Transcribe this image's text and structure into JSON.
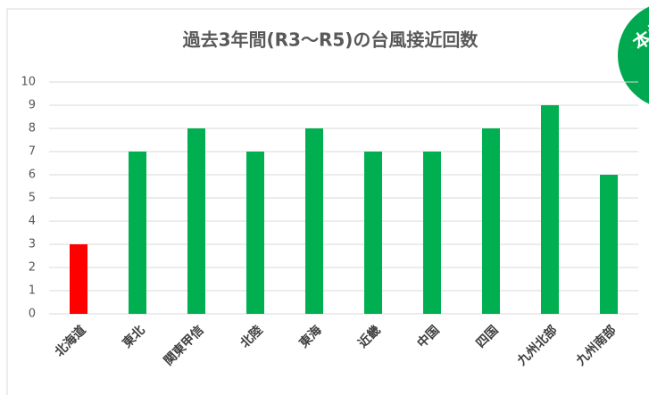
{
  "chart_data": {
    "type": "bar",
    "title": "過去3年間(R3～R5)の台風接近回数",
    "categories": [
      "北海道",
      "東北",
      "関東甲信",
      "北陸",
      "東海",
      "近畿",
      "中国",
      "四国",
      "九州北部",
      "九州南部"
    ],
    "values": [
      3,
      7,
      8,
      7,
      8,
      7,
      7,
      8,
      9,
      6
    ],
    "colors": [
      "#ff0000",
      "#00b050",
      "#00b050",
      "#00b050",
      "#00b050",
      "#00b050",
      "#00b050",
      "#00b050",
      "#00b050",
      "#00b050"
    ],
    "ylim": [
      0,
      10
    ],
    "yticks": [
      0,
      1,
      2,
      3,
      4,
      5,
      6,
      7,
      8,
      9,
      10
    ],
    "grid": true
  },
  "badge": {
    "text": "本州"
  }
}
